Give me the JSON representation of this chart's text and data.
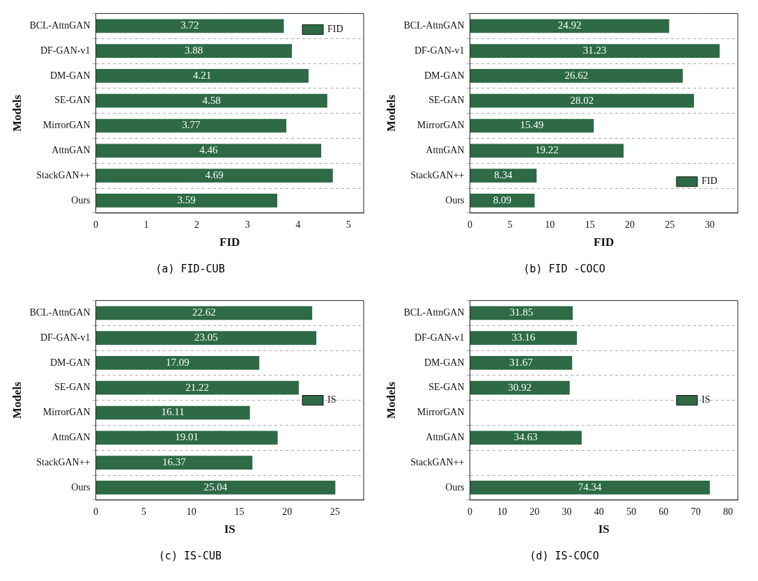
{
  "chart_data": [
    {
      "type": "bar",
      "orientation": "horizontal",
      "xlabel": "FID",
      "ylabel": "Models",
      "categories": [
        "BCL-AttnGAN",
        "DF-GAN-v1",
        "DM-GAN",
        "SE-GAN",
        "MirrorGAN",
        "AttnGAN",
        "StackGAN++",
        "Ours"
      ],
      "series": [
        {
          "name": "FID",
          "color": "#2d6a45",
          "values": [
            3.72,
            3.88,
            4.21,
            4.58,
            3.77,
            4.46,
            4.69,
            3.59
          ]
        }
      ],
      "xlim": [
        0,
        5.3
      ],
      "xticks": [
        0,
        1,
        2,
        3,
        4,
        5
      ],
      "grid": "y",
      "legend": "top right",
      "data_labels": true,
      "annotations": [
        "(a) FID-CUB"
      ]
    },
    {
      "type": "bar",
      "orientation": "horizontal",
      "xlabel": "FID",
      "ylabel": "Models",
      "categories": [
        "BCL-AttnGAN",
        "DF-GAN-v1",
        "DM-GAN",
        "SE-GAN",
        "MirrorGAN",
        "AttnGAN",
        "StackGAN++",
        "Ours"
      ],
      "series": [
        {
          "name": "FID",
          "color": "#2d6a45",
          "values": [
            24.92,
            31.23,
            26.62,
            28.02,
            15.49,
            19.22,
            8.34,
            8.09
          ]
        }
      ],
      "xlim": [
        0,
        33.5
      ],
      "xticks": [
        0,
        5,
        10,
        15,
        20,
        25,
        30
      ],
      "grid": "y",
      "legend": "bottom right",
      "data_labels": true,
      "annotations": [
        "(b) FID -COCO"
      ]
    },
    {
      "type": "bar",
      "orientation": "horizontal",
      "xlabel": "IS",
      "ylabel": "Models",
      "categories": [
        "BCL-AttnGAN",
        "DF-GAN-v1",
        "DM-GAN",
        "SE-GAN",
        "MirrorGAN",
        "AttnGAN",
        "StackGAN++",
        "Ours"
      ],
      "series": [
        {
          "name": "IS",
          "color": "#2d6a45",
          "values": [
            22.62,
            23.05,
            17.09,
            21.22,
            16.11,
            19.01,
            16.37,
            25.04
          ]
        }
      ],
      "xlim": [
        0,
        28
      ],
      "xticks": [
        0,
        5,
        10,
        15,
        20,
        25
      ],
      "grid": "y",
      "legend": "right",
      "data_labels": true,
      "annotations": [
        "(c) IS-CUB"
      ]
    },
    {
      "type": "bar",
      "orientation": "horizontal",
      "xlabel": "IS",
      "ylabel": "Models",
      "categories": [
        "BCL-AttnGAN",
        "DF-GAN-v1",
        "DM-GAN",
        "SE-GAN",
        "MirrorGAN",
        "AttnGAN",
        "StackGAN++",
        "Ours"
      ],
      "series": [
        {
          "name": "IS",
          "color": "#2d6a45",
          "values": [
            31.85,
            33.16,
            31.67,
            30.92,
            null,
            34.63,
            null,
            74.34
          ]
        }
      ],
      "xlim": [
        0,
        83
      ],
      "xticks": [
        0,
        10,
        20,
        30,
        40,
        50,
        60,
        70,
        80
      ],
      "grid": "y",
      "legend": "right",
      "data_labels": true,
      "annotations": [
        "(d) IS-COCO"
      ]
    }
  ]
}
